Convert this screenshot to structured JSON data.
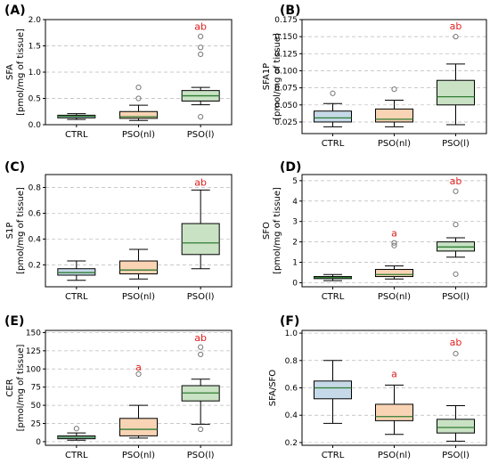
{
  "categories": [
    "CTRL",
    "PSO(nl)",
    "PSO(l)"
  ],
  "box_colors": [
    "#c5d9e8",
    "#f9d4b4",
    "#c9e2c4"
  ],
  "median_color": "#2e7d32",
  "significance_color": "#e02020",
  "chart_data": [
    {
      "panel": "(A)",
      "type": "box",
      "ylabel": "SFA\n[pmol/mg of tissue]",
      "ylim": [
        0,
        2.0
      ],
      "yticks": [
        0.0,
        0.5,
        1.0,
        1.5,
        2.0
      ],
      "ytick_labels": [
        "0.0",
        "0.5",
        "1.0",
        "1.5",
        "2.0"
      ],
      "grid": true,
      "boxes": [
        {
          "category": "CTRL",
          "whislo": 0.1,
          "q1": 0.13,
          "med": 0.16,
          "q3": 0.18,
          "whishi": 0.21,
          "fliers": []
        },
        {
          "category": "PSO(nl)",
          "whislo": 0.08,
          "q1": 0.12,
          "med": 0.15,
          "q3": 0.25,
          "whishi": 0.37,
          "fliers": [
            0.5,
            0.71
          ]
        },
        {
          "category": "PSO(l)",
          "whislo": 0.38,
          "q1": 0.45,
          "med": 0.55,
          "q3": 0.65,
          "whishi": 0.71,
          "fliers": [
            0.15,
            1.34,
            1.47,
            1.68
          ]
        }
      ],
      "significance": [
        {
          "category": "PSO(l)",
          "label": "ab",
          "y": 1.87
        }
      ]
    },
    {
      "panel": "(B)",
      "type": "box",
      "ylabel": "SFA1P\n[pmol/mg of tissue]",
      "ylim": [
        0.008,
        0.175
      ],
      "yticks": [
        0.025,
        0.05,
        0.075,
        0.1,
        0.125,
        0.15,
        0.175
      ],
      "ytick_labels": [
        "0.025",
        "0.050",
        "0.075",
        "0.100",
        "0.125",
        "0.150",
        "0.175"
      ],
      "grid": true,
      "boxes": [
        {
          "category": "CTRL",
          "whislo": 0.018,
          "q1": 0.025,
          "med": 0.031,
          "q3": 0.041,
          "whishi": 0.052,
          "fliers": [
            0.067
          ]
        },
        {
          "category": "PSO(nl)",
          "whislo": 0.018,
          "q1": 0.025,
          "med": 0.029,
          "q3": 0.044,
          "whishi": 0.057,
          "fliers": [
            0.073
          ]
        },
        {
          "category": "PSO(l)",
          "whislo": 0.021,
          "q1": 0.05,
          "med": 0.062,
          "q3": 0.086,
          "whishi": 0.11,
          "fliers": [
            0.15
          ]
        }
      ],
      "significance": [
        {
          "category": "PSO(l)",
          "label": "ab",
          "y": 0.166
        }
      ]
    },
    {
      "panel": "(C)",
      "type": "box",
      "ylabel": "S1P\n[pmol/mg of tissue]",
      "ylim": [
        0.03,
        0.9
      ],
      "yticks": [
        0.2,
        0.4,
        0.6,
        0.8
      ],
      "ytick_labels": [
        "0.2",
        "0.4",
        "0.6",
        "0.8"
      ],
      "grid": true,
      "boxes": [
        {
          "category": "CTRL",
          "whislo": 0.08,
          "q1": 0.12,
          "med": 0.14,
          "q3": 0.17,
          "whishi": 0.23,
          "fliers": []
        },
        {
          "category": "PSO(nl)",
          "whislo": 0.09,
          "q1": 0.13,
          "med": 0.16,
          "q3": 0.23,
          "whishi": 0.32,
          "fliers": []
        },
        {
          "category": "PSO(l)",
          "whislo": 0.17,
          "q1": 0.28,
          "med": 0.37,
          "q3": 0.52,
          "whishi": 0.78,
          "fliers": []
        }
      ],
      "significance": [
        {
          "category": "PSO(l)",
          "label": "ab",
          "y": 0.84
        }
      ]
    },
    {
      "panel": "(D)",
      "type": "box",
      "ylabel": "SFO\n[pmol/mg of tissue]",
      "ylim": [
        -0.2,
        5.3
      ],
      "yticks": [
        0,
        1,
        2,
        3,
        4,
        5
      ],
      "ytick_labels": [
        "0",
        "1",
        "2",
        "3",
        "4",
        "5"
      ],
      "grid": true,
      "boxes": [
        {
          "category": "CTRL",
          "whislo": 0.1,
          "q1": 0.2,
          "med": 0.25,
          "q3": 0.3,
          "whishi": 0.4,
          "fliers": []
        },
        {
          "category": "PSO(nl)",
          "whislo": 0.18,
          "q1": 0.3,
          "med": 0.4,
          "q3": 0.65,
          "whishi": 0.82,
          "fliers": [
            1.82,
            1.95
          ]
        },
        {
          "category": "PSO(l)",
          "whislo": 1.25,
          "q1": 1.55,
          "med": 1.75,
          "q3": 2.0,
          "whishi": 2.2,
          "fliers": [
            0.42,
            2.85,
            4.48
          ]
        }
      ],
      "significance": [
        {
          "category": "PSO(nl)",
          "label": "a",
          "y": 2.45
        },
        {
          "category": "PSO(l)",
          "label": "ab",
          "y": 5.0
        }
      ]
    },
    {
      "panel": "(E)",
      "type": "box",
      "ylabel": "CER\n[pmol/mg of tissue]",
      "ylim": [
        -5,
        153
      ],
      "yticks": [
        0,
        25,
        50,
        75,
        100,
        125,
        150
      ],
      "ytick_labels": [
        "0",
        "25",
        "50",
        "75",
        "100",
        "125",
        "150"
      ],
      "grid": true,
      "boxes": [
        {
          "category": "CTRL",
          "whislo": 2,
          "q1": 4,
          "med": 6,
          "q3": 8,
          "whishi": 12,
          "fliers": [
            18
          ]
        },
        {
          "category": "PSO(nl)",
          "whislo": 5,
          "q1": 8,
          "med": 17,
          "q3": 32,
          "whishi": 50,
          "fliers": [
            93
          ]
        },
        {
          "category": "PSO(l)",
          "whislo": 24,
          "q1": 56,
          "med": 67,
          "q3": 77,
          "whishi": 86,
          "fliers": [
            17,
            120,
            130
          ]
        }
      ],
      "significance": [
        {
          "category": "PSO(nl)",
          "label": "a",
          "y": 103
        },
        {
          "category": "PSO(l)",
          "label": "ab",
          "y": 143
        }
      ]
    },
    {
      "panel": "(F)",
      "type": "box",
      "ylabel": "SFA/SFO",
      "ylim": [
        0.18,
        1.02
      ],
      "yticks": [
        0.2,
        0.4,
        0.6,
        0.8,
        1.0
      ],
      "ytick_labels": [
        "0.2",
        "0.4",
        "0.6",
        "0.8",
        "1.0"
      ],
      "grid": true,
      "boxes": [
        {
          "category": "CTRL",
          "whislo": 0.34,
          "q1": 0.52,
          "med": 0.6,
          "q3": 0.65,
          "whishi": 0.8,
          "fliers": []
        },
        {
          "category": "PSO(nl)",
          "whislo": 0.26,
          "q1": 0.36,
          "med": 0.39,
          "q3": 0.48,
          "whishi": 0.62,
          "fliers": []
        },
        {
          "category": "PSO(l)",
          "whislo": 0.21,
          "q1": 0.27,
          "med": 0.31,
          "q3": 0.37,
          "whishi": 0.47,
          "fliers": [
            0.85
          ]
        }
      ],
      "significance": [
        {
          "category": "PSO(nl)",
          "label": "a",
          "y": 0.705
        },
        {
          "category": "PSO(l)",
          "label": "ab",
          "y": 0.935
        }
      ]
    }
  ]
}
